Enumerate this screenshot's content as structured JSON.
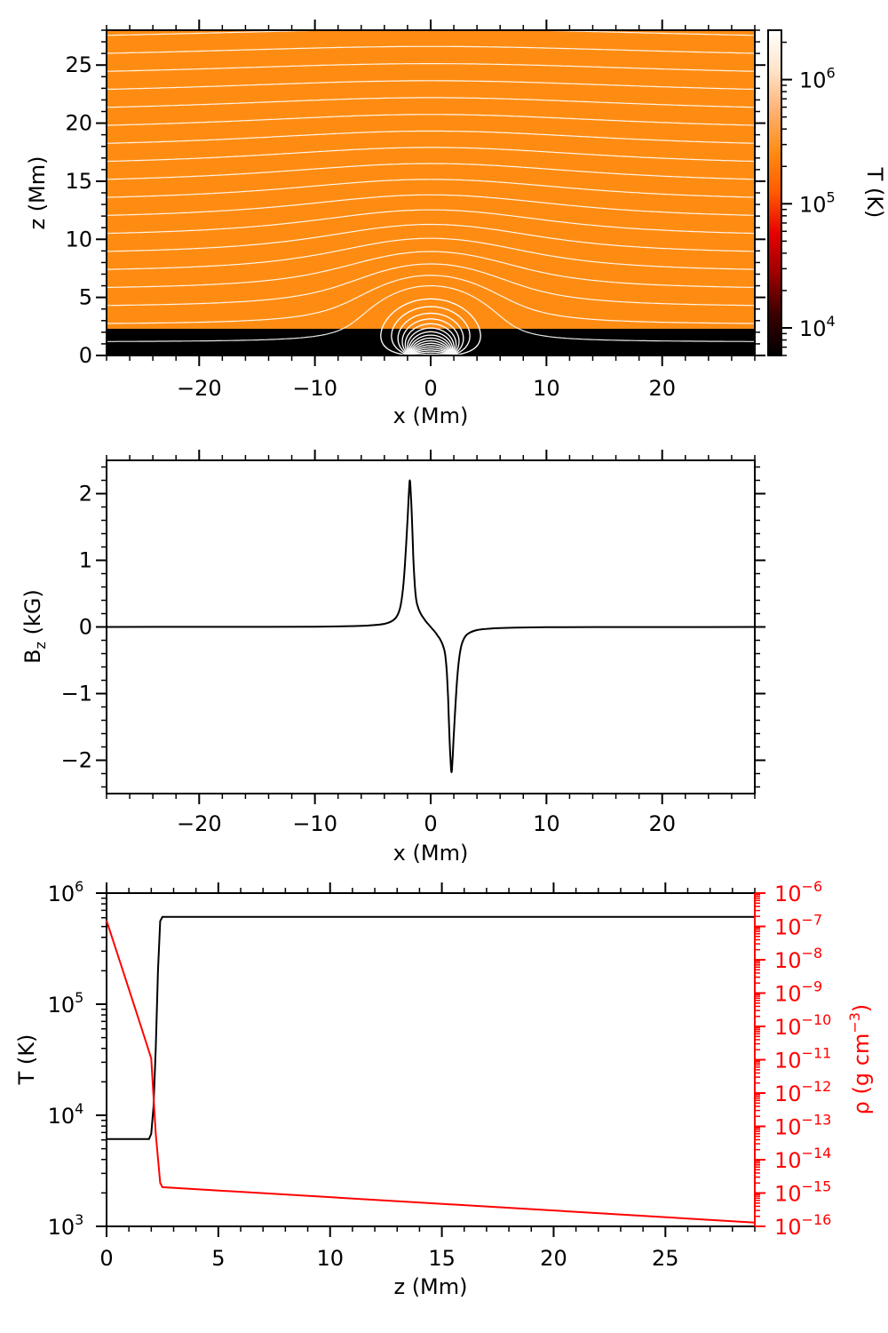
{
  "chart_data": [
    {
      "type": "heatmap",
      "xlabel": "x (Mm)",
      "ylabel": "z (Mm)",
      "xlim": [
        -28,
        28
      ],
      "ylim": [
        0,
        28
      ],
      "x_ticks": [
        -20,
        -10,
        0,
        10,
        20
      ],
      "x_tick_labels": [
        "−20",
        "−10",
        "0",
        "10",
        "20"
      ],
      "y_ticks": [
        0,
        5,
        10,
        15,
        20,
        25
      ],
      "y_tick_labels": [
        "0",
        "5",
        "10",
        "15",
        "20",
        "25"
      ],
      "colorbar": {
        "label": "T (K)",
        "scale": "log",
        "range": [
          6000,
          2500000
        ],
        "tick_values": [
          10000,
          100000,
          1000000
        ],
        "tick_labels": [
          {
            "base": "10",
            "exp": "4"
          },
          {
            "base": "10",
            "exp": "5"
          },
          {
            "base": "10",
            "exp": "6"
          }
        ],
        "colormap": [
          "#000000",
          "#3a0000",
          "#9c0000",
          "#e60000",
          "#ff5a00",
          "#ff8c12",
          "#ffb070",
          "#ffe3c8",
          "#ffffff"
        ]
      },
      "regions": [
        {
          "z_range": [
            0,
            2.3
          ],
          "temperature_K": 6000,
          "color": "#000000"
        },
        {
          "z_range": [
            2.3,
            28
          ],
          "temperature_K": 600000,
          "color": "#ff8c12"
        }
      ],
      "field_line_color": "#ffffff",
      "field_sources": [
        {
          "x": -1.8,
          "z": 0,
          "sign": 1
        },
        {
          "x": 1.8,
          "z": 0,
          "sign": -1
        }
      ]
    },
    {
      "type": "line",
      "xlabel": "x (Mm)",
      "ylabel": {
        "main": "B",
        "sub": "z",
        "rest": " (kG)"
      },
      "xlim": [
        -28,
        28
      ],
      "ylim": [
        -2.5,
        2.5
      ],
      "x_ticks": [
        -20,
        -10,
        0,
        10,
        20
      ],
      "x_tick_labels": [
        "−20",
        "−10",
        "0",
        "10",
        "20"
      ],
      "y_ticks": [
        -2,
        -1,
        0,
        1,
        2
      ],
      "y_tick_labels": [
        "−2",
        "−1",
        "0",
        "1",
        "2"
      ],
      "series": [
        {
          "color": "#000000",
          "x": [
            -28,
            -20,
            -14,
            -10,
            -8,
            -6,
            -5,
            -4,
            -3.4,
            -3,
            -2.7,
            -2.5,
            -2.3,
            -2.15,
            -2.0,
            -1.9,
            -1.8,
            -1.7,
            -1.6,
            -1.5,
            -1.4,
            -1.3,
            -1.2,
            -1.1,
            -1.0,
            -0.8,
            -0.6,
            -0.4,
            -0.2,
            0,
            0.2,
            0.4,
            0.6,
            0.8,
            1.0,
            1.1,
            1.2,
            1.3,
            1.4,
            1.5,
            1.6,
            1.7,
            1.8,
            1.9,
            2.0,
            2.15,
            2.3,
            2.5,
            2.7,
            3.0,
            3.4,
            4,
            5,
            6,
            8,
            10,
            14,
            20,
            28
          ],
          "values": [
            0.0,
            0.001,
            0.002,
            0.004,
            0.008,
            0.016,
            0.026,
            0.047,
            0.084,
            0.14,
            0.25,
            0.42,
            0.75,
            1.15,
            1.6,
            1.95,
            2.2,
            1.95,
            1.55,
            1.05,
            0.7,
            0.48,
            0.36,
            0.3,
            0.25,
            0.18,
            0.13,
            0.08,
            0.04,
            0.0,
            -0.04,
            -0.08,
            -0.13,
            -0.18,
            -0.25,
            -0.3,
            -0.36,
            -0.48,
            -0.7,
            -1.05,
            -1.55,
            -1.95,
            -2.18,
            -1.95,
            -1.6,
            -1.15,
            -0.75,
            -0.42,
            -0.25,
            -0.14,
            -0.084,
            -0.047,
            -0.026,
            -0.016,
            -0.008,
            -0.004,
            -0.002,
            -0.001,
            0.0
          ]
        }
      ]
    },
    {
      "type": "line",
      "xlabel": "z (Mm)",
      "xlim": [
        0,
        29
      ],
      "x_ticks": [
        0,
        5,
        10,
        15,
        20,
        25
      ],
      "x_tick_labels": [
        "0",
        "5",
        "10",
        "15",
        "20",
        "25"
      ],
      "y_left": {
        "label": "T (K)",
        "scale": "log",
        "range": [
          1000,
          1000000
        ],
        "tick_values": [
          1000,
          10000,
          100000,
          1000000
        ],
        "tick_labels": [
          {
            "base": "10",
            "exp": "3"
          },
          {
            "base": "10",
            "exp": "4"
          },
          {
            "base": "10",
            "exp": "5"
          },
          {
            "base": "10",
            "exp": "6"
          }
        ]
      },
      "y_right": {
        "label": {
          "main": "ρ (g cm",
          "sup": "−3",
          "rest": ")"
        },
        "scale": "log",
        "color": "#ff0000",
        "range": [
          1e-16,
          1e-06
        ],
        "tick_values": [
          1e-16,
          1e-15,
          1e-14,
          1e-13,
          1e-12,
          1e-11,
          1e-10,
          1e-09,
          1e-08,
          1e-07,
          1e-06
        ],
        "tick_labels": [
          {
            "base": "10",
            "exp": "−16"
          },
          {
            "base": "10",
            "exp": "−15"
          },
          {
            "base": "10",
            "exp": "−14"
          },
          {
            "base": "10",
            "exp": "−13"
          },
          {
            "base": "10",
            "exp": "−12"
          },
          {
            "base": "10",
            "exp": "−11"
          },
          {
            "base": "10",
            "exp": "−10"
          },
          {
            "base": "10",
            "exp": "−9"
          },
          {
            "base": "10",
            "exp": "−8"
          },
          {
            "base": "10",
            "exp": "−7"
          },
          {
            "base": "10",
            "exp": "−6"
          }
        ]
      },
      "series": [
        {
          "axis": "left",
          "color": "#000000",
          "x": [
            0,
            1.9,
            2.0,
            2.1,
            2.2,
            2.3,
            2.4,
            2.5,
            29
          ],
          "values": [
            6100,
            6100,
            6800,
            12000,
            40000,
            200000,
            560000,
            610000,
            610000
          ]
        },
        {
          "axis": "right",
          "color": "#ff0000",
          "x": [
            0,
            0.5,
            1.0,
            1.5,
            2.0,
            2.2,
            2.4,
            2.5,
            29
          ],
          "values": [
            1.5e-07,
            1.4e-08,
            1.3e-09,
            1.2e-10,
            1.1e-11,
            6e-14,
            2e-15,
            1.5e-15,
            1.3e-16
          ]
        }
      ]
    }
  ]
}
